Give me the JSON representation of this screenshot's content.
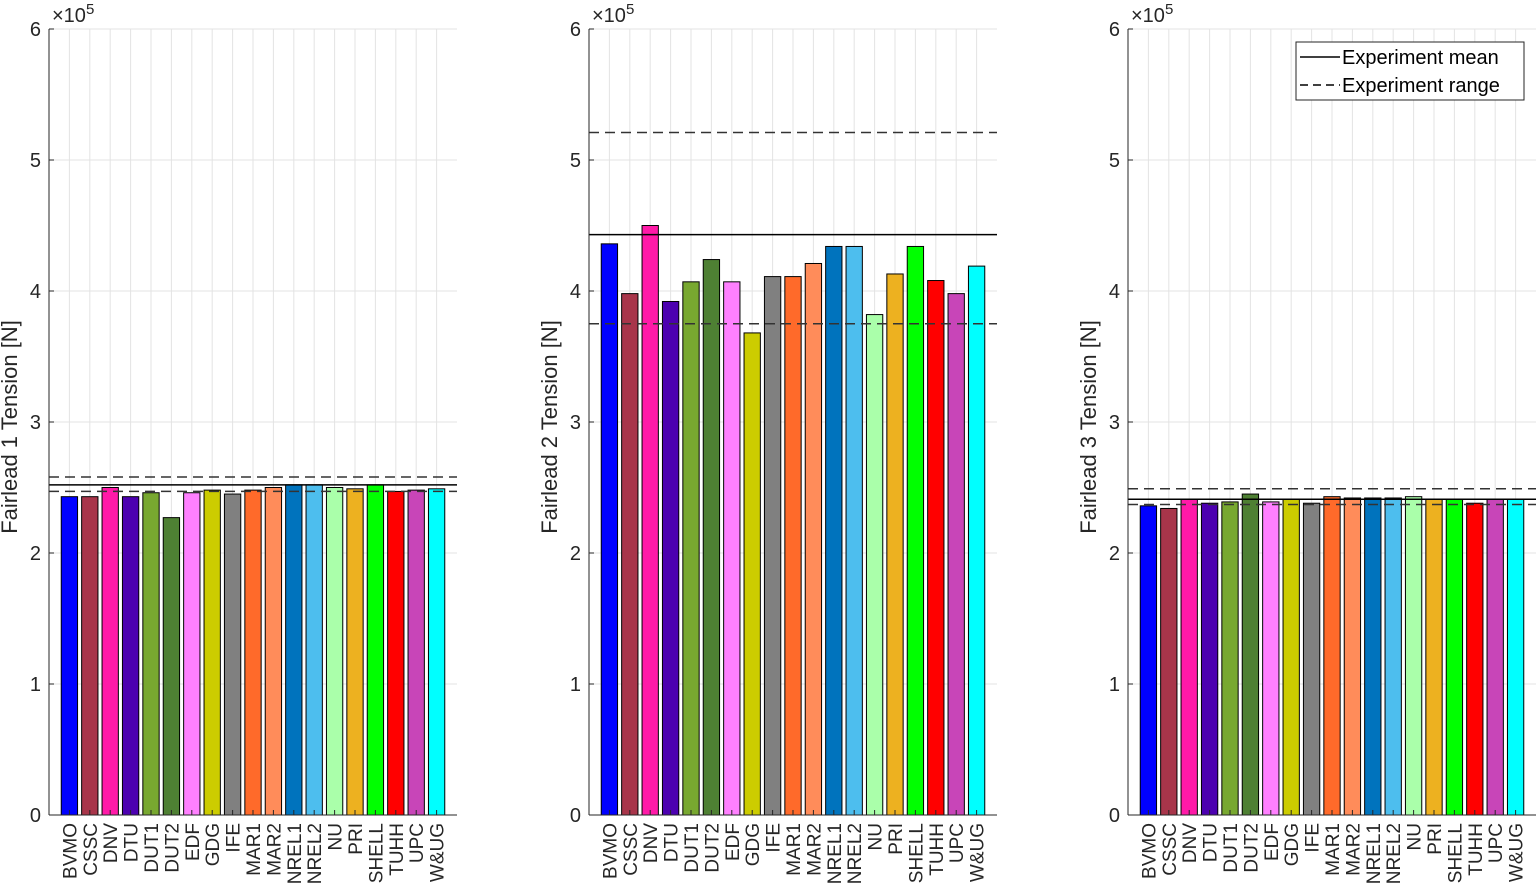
{
  "chart_data": [
    {
      "type": "bar",
      "ylabel": "Fairlead 1 Tension [N]",
      "ylim": [
        0,
        600000
      ],
      "yticks": [
        "0",
        "1",
        "2",
        "3",
        "4",
        "5",
        "6"
      ],
      "exponent_label": "×10",
      "exponent_power": "5",
      "grid": true,
      "categories": [
        "BVMO",
        "CSSC",
        "DNV",
        "DTU",
        "DUT1",
        "DUT2",
        "EDF",
        "GDG",
        "IFE",
        "MAR1",
        "MAR2",
        "NREL1",
        "NREL2",
        "NU",
        "PRI",
        "SHELL",
        "TUHH",
        "UPC",
        "W&UG"
      ],
      "values": [
        243000,
        243000,
        250000,
        243000,
        246000,
        227000,
        246000,
        248000,
        245000,
        248000,
        250000,
        252000,
        252000,
        250000,
        249000,
        252000,
        247000,
        248000,
        249000
      ],
      "experiment_mean": 252000,
      "experiment_range": [
        247000,
        258000
      ]
    },
    {
      "type": "bar",
      "ylabel": "Fairlead 2 Tension [N]",
      "ylim": [
        0,
        600000
      ],
      "yticks": [
        "0",
        "1",
        "2",
        "3",
        "4",
        "5",
        "6"
      ],
      "exponent_label": "×10",
      "exponent_power": "5",
      "grid": true,
      "categories": [
        "BVMO",
        "CSSC",
        "DNV",
        "DTU",
        "DUT1",
        "DUT2",
        "EDF",
        "GDG",
        "IFE",
        "MAR1",
        "MAR2",
        "NREL1",
        "NREL2",
        "NU",
        "PRI",
        "SHELL",
        "TUHH",
        "UPC",
        "W&UG"
      ],
      "values": [
        436000,
        398000,
        450000,
        392000,
        407000,
        424000,
        407000,
        368000,
        411000,
        411000,
        421000,
        434000,
        434000,
        382000,
        413000,
        434000,
        408000,
        398000,
        419000
      ],
      "experiment_mean": 443000,
      "experiment_range": [
        375000,
        521000
      ]
    },
    {
      "type": "bar",
      "ylabel": "Fairlead 3 Tension [N]",
      "ylim": [
        0,
        600000
      ],
      "yticks": [
        "0",
        "1",
        "2",
        "3",
        "4",
        "5",
        "6"
      ],
      "exponent_label": "×10",
      "exponent_power": "5",
      "grid": true,
      "categories": [
        "BVMO",
        "CSSC",
        "DNV",
        "DTU",
        "DUT1",
        "DUT2",
        "EDF",
        "GDG",
        "IFE",
        "MAR1",
        "MAR2",
        "NREL1",
        "NREL2",
        "NU",
        "PRI",
        "SHELL",
        "TUHH",
        "UPC",
        "W&UG"
      ],
      "values": [
        236000,
        234000,
        241000,
        238000,
        239000,
        245000,
        239000,
        241000,
        238000,
        243000,
        242000,
        242000,
        242000,
        243000,
        241000,
        241000,
        238000,
        241000,
        241000
      ],
      "experiment_mean": 241000,
      "experiment_range": [
        237000,
        249000
      ],
      "legend": {
        "position": "top-right",
        "entries": [
          {
            "label": "Experiment mean",
            "style": "solid"
          },
          {
            "label": "Experiment range",
            "style": "dashed"
          }
        ]
      }
    }
  ],
  "bar_colors": [
    "#0000FF",
    "#A8354A",
    "#FF1AA8",
    "#4C00B0",
    "#78A830",
    "#4E8033",
    "#FF80FF",
    "#CCCC00",
    "#808080",
    "#FF6A2A",
    "#FF8C5A",
    "#0073BD",
    "#4DBEEE",
    "#AAFFAA",
    "#EDB120",
    "#00FF00",
    "#FF0000",
    "#C845B8",
    "#00FFFF"
  ]
}
